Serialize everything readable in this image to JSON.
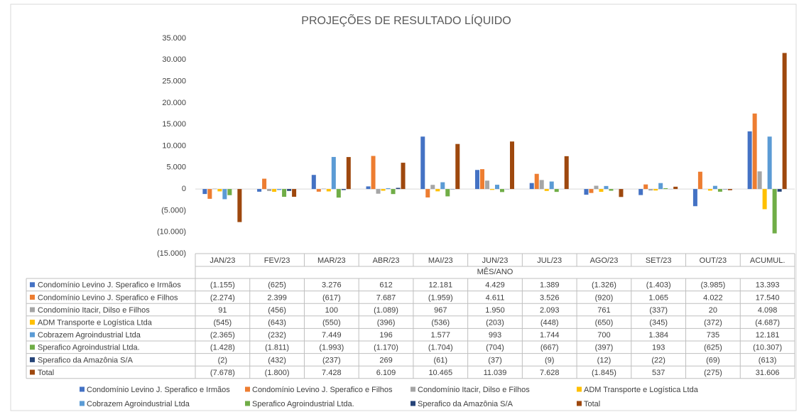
{
  "chart_data": {
    "type": "bar",
    "title": "PROJEÇÕES DE RESULTADO LÍQUIDO",
    "x_label": "MÊS/ANO",
    "categories": [
      "JAN/23",
      "FEV/23",
      "MAR/23",
      "ABR/23",
      "MAI/23",
      "JUN/23",
      "JUL/23",
      "AGO/23",
      "SET/23",
      "OUT/23",
      "ACUMUL."
    ],
    "ylim": [
      -15000,
      35000
    ],
    "yticks": [
      {
        "value": -15000,
        "label": "(15.000)"
      },
      {
        "value": -10000,
        "label": "(10.000)"
      },
      {
        "value": -5000,
        "label": "(5.000)"
      },
      0,
      {
        "value": 5000,
        "label": "5.000"
      },
      {
        "value": 10000,
        "label": "10.000"
      },
      {
        "value": 15000,
        "label": "15.000"
      },
      {
        "value": 20000,
        "label": "20.000"
      },
      {
        "value": 25000,
        "label": "25.000"
      },
      {
        "value": 30000,
        "label": "30.000"
      },
      {
        "value": 35000,
        "label": "35.000"
      }
    ],
    "grid": false,
    "legend": "bottom",
    "series": [
      {
        "name": "Condomínio Levino J. Sperafico e Irmãos",
        "color": "#4472c4",
        "values": [
          -1155,
          -625,
          3276,
          612,
          12181,
          4429,
          1389,
          -1326,
          -1403,
          -3985,
          13393
        ],
        "value_labels": [
          "(1.155)",
          "(625)",
          "3.276",
          "612",
          "12.181",
          "4.429",
          "1.389",
          "(1.326)",
          "(1.403)",
          "(3.985)",
          "13.393"
        ]
      },
      {
        "name": "Condomínio Levino J. Sperafico e Filhos",
        "color": "#ed7d31",
        "values": [
          -2274,
          2399,
          -617,
          7687,
          -1959,
          4611,
          3526,
          -920,
          1065,
          4022,
          17540
        ],
        "value_labels": [
          "(2.274)",
          "2.399",
          "(617)",
          "7.687",
          "(1.959)",
          "4.611",
          "3.526",
          "(920)",
          "1.065",
          "4.022",
          "17.540"
        ]
      },
      {
        "name": "Condomínio Itacir, Dilso e Filhos",
        "color": "#a5a5a5",
        "values": [
          91,
          -456,
          100,
          -1089,
          967,
          1950,
          2093,
          761,
          -337,
          20,
          4098
        ],
        "value_labels": [
          "91",
          "(456)",
          "100",
          "(1.089)",
          "967",
          "1.950",
          "2.093",
          "761",
          "(337)",
          "20",
          "4.098"
        ]
      },
      {
        "name": "ADM Transporte e Logística Ltda",
        "color": "#ffc000",
        "values": [
          -545,
          -643,
          -550,
          -396,
          -536,
          -203,
          -448,
          -650,
          -345,
          -372,
          -4687
        ],
        "value_labels": [
          "(545)",
          "(643)",
          "(550)",
          "(396)",
          "(536)",
          "(203)",
          "(448)",
          "(650)",
          "(345)",
          "(372)",
          "(4.687)"
        ]
      },
      {
        "name": "Cobrazem Agroindustrial Ltda",
        "color": "#5b9bd5",
        "values": [
          -2365,
          -232,
          7449,
          196,
          1577,
          993,
          1744,
          700,
          1384,
          735,
          12181
        ],
        "value_labels": [
          "(2.365)",
          "(232)",
          "7.449",
          "196",
          "1.577",
          "993",
          "1.744",
          "700",
          "1.384",
          "735",
          "12.181"
        ]
      },
      {
        "name": "Sperafico Agroindustrial Ltda.",
        "color": "#70ad47",
        "values": [
          -1428,
          -1811,
          -1993,
          -1170,
          -1704,
          -704,
          -667,
          -397,
          193,
          -625,
          -10307
        ],
        "value_labels": [
          "(1.428)",
          "(1.811)",
          "(1.993)",
          "(1.170)",
          "(1.704)",
          "(704)",
          "(667)",
          "(397)",
          "193",
          "(625)",
          "(10.307)"
        ]
      },
      {
        "name": "Sperafico da Amazônia S/A",
        "color": "#264478",
        "values": [
          -2,
          -432,
          -237,
          269,
          -61,
          -37,
          -9,
          -12,
          -22,
          -69,
          -613
        ],
        "value_labels": [
          "(2)",
          "(432)",
          "(237)",
          "269",
          "(61)",
          "(37)",
          "(9)",
          "(12)",
          "(22)",
          "(69)",
          "(613)"
        ]
      },
      {
        "name": "Total",
        "color": "#9e480e",
        "values": [
          -7678,
          -1800,
          7428,
          6109,
          10465,
          11039,
          7628,
          -1845,
          537,
          -275,
          31606
        ],
        "value_labels": [
          "(7.678)",
          "(1.800)",
          "7.428",
          "6.109",
          "10.465",
          "11.039",
          "7.628",
          "(1.845)",
          "537",
          "(275)",
          "31.606"
        ]
      }
    ]
  }
}
